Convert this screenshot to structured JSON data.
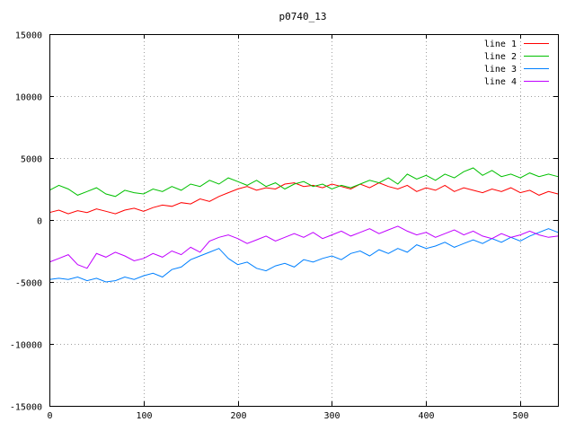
{
  "chart_data": {
    "type": "line",
    "title": "p0740_13",
    "xlabel": "",
    "ylabel": "",
    "xlim": [
      0,
      540
    ],
    "ylim": [
      -15000,
      15000
    ],
    "xticks": [
      0,
      100,
      200,
      300,
      400,
      500
    ],
    "yticks": [
      -15000,
      -10000,
      -5000,
      0,
      5000,
      10000,
      15000
    ],
    "grid": true,
    "legend_position": "top-right",
    "series": [
      {
        "name": "line 1",
        "color": "#ff0000",
        "x": [
          0,
          10,
          20,
          30,
          40,
          50,
          60,
          70,
          80,
          90,
          100,
          110,
          120,
          130,
          140,
          150,
          160,
          170,
          180,
          190,
          200,
          210,
          220,
          230,
          240,
          250,
          260,
          270,
          280,
          290,
          300,
          310,
          320,
          330,
          340,
          350,
          360,
          370,
          380,
          390,
          400,
          410,
          420,
          430,
          440,
          450,
          460,
          470,
          480,
          490,
          500,
          510,
          520,
          530,
          540
        ],
        "y": [
          600,
          800,
          500,
          750,
          600,
          900,
          700,
          500,
          800,
          950,
          700,
          1000,
          1200,
          1100,
          1400,
          1300,
          1700,
          1500,
          1900,
          2200,
          2500,
          2700,
          2400,
          2600,
          2500,
          2900,
          3000,
          2700,
          2800,
          2600,
          2900,
          2700,
          2500,
          2900,
          2600,
          3000,
          2700,
          2500,
          2800,
          2300,
          2600,
          2400,
          2800,
          2300,
          2600,
          2400,
          2200,
          2500,
          2300,
          2600,
          2200,
          2400,
          2000,
          2300,
          2100
        ]
      },
      {
        "name": "line 2",
        "color": "#00c000",
        "x": [
          0,
          10,
          20,
          30,
          40,
          50,
          60,
          70,
          80,
          90,
          100,
          110,
          120,
          130,
          140,
          150,
          160,
          170,
          180,
          190,
          200,
          210,
          220,
          230,
          240,
          250,
          260,
          270,
          280,
          290,
          300,
          310,
          320,
          330,
          340,
          350,
          360,
          370,
          380,
          390,
          400,
          410,
          420,
          430,
          440,
          450,
          460,
          470,
          480,
          490,
          500,
          510,
          520,
          530,
          540
        ],
        "y": [
          2400,
          2800,
          2500,
          2000,
          2300,
          2600,
          2100,
          1900,
          2400,
          2200,
          2100,
          2500,
          2300,
          2700,
          2400,
          2900,
          2700,
          3200,
          2900,
          3400,
          3100,
          2800,
          3200,
          2700,
          3000,
          2500,
          2900,
          3100,
          2700,
          2900,
          2500,
          2800,
          2600,
          2900,
          3200,
          3000,
          3400,
          2900,
          3700,
          3300,
          3600,
          3200,
          3700,
          3400,
          3900,
          4200,
          3600,
          4000,
          3500,
          3700,
          3400,
          3800,
          3500,
          3700,
          3500
        ]
      },
      {
        "name": "line 3",
        "color": "#0080ff",
        "x": [
          0,
          10,
          20,
          30,
          40,
          50,
          60,
          70,
          80,
          90,
          100,
          110,
          120,
          130,
          140,
          150,
          160,
          170,
          180,
          190,
          200,
          210,
          220,
          230,
          240,
          250,
          260,
          270,
          280,
          290,
          300,
          310,
          320,
          330,
          340,
          350,
          360,
          370,
          380,
          390,
          400,
          410,
          420,
          430,
          440,
          450,
          460,
          470,
          480,
          490,
          500,
          510,
          520,
          530,
          540
        ],
        "y": [
          -4800,
          -4700,
          -4800,
          -4600,
          -4900,
          -4700,
          -5000,
          -4900,
          -4600,
          -4800,
          -4500,
          -4300,
          -4600,
          -4000,
          -3800,
          -3200,
          -2900,
          -2600,
          -2300,
          -3100,
          -3600,
          -3400,
          -3900,
          -4100,
          -3700,
          -3500,
          -3800,
          -3200,
          -3400,
          -3100,
          -2900,
          -3200,
          -2700,
          -2500,
          -2900,
          -2400,
          -2700,
          -2300,
          -2600,
          -2000,
          -2300,
          -2100,
          -1800,
          -2200,
          -1900,
          -1600,
          -1900,
          -1500,
          -1800,
          -1400,
          -1700,
          -1300,
          -1000,
          -700,
          -1000
        ]
      },
      {
        "name": "line 4",
        "color": "#c000ff",
        "x": [
          0,
          10,
          20,
          30,
          40,
          50,
          60,
          70,
          80,
          90,
          100,
          110,
          120,
          130,
          140,
          150,
          160,
          170,
          180,
          190,
          200,
          210,
          220,
          230,
          240,
          250,
          260,
          270,
          280,
          290,
          300,
          310,
          320,
          330,
          340,
          350,
          360,
          370,
          380,
          390,
          400,
          410,
          420,
          430,
          440,
          450,
          460,
          470,
          480,
          490,
          500,
          510,
          520,
          530,
          540
        ],
        "y": [
          -3400,
          -3100,
          -2800,
          -3600,
          -3900,
          -2700,
          -3000,
          -2600,
          -2900,
          -3300,
          -3100,
          -2700,
          -3000,
          -2500,
          -2800,
          -2200,
          -2600,
          -1700,
          -1400,
          -1200,
          -1500,
          -1900,
          -1600,
          -1300,
          -1700,
          -1400,
          -1100,
          -1400,
          -1000,
          -1500,
          -1200,
          -900,
          -1300,
          -1000,
          -700,
          -1100,
          -800,
          -500,
          -900,
          -1200,
          -1000,
          -1400,
          -1100,
          -800,
          -1200,
          -900,
          -1300,
          -1500,
          -1100,
          -1400,
          -1200,
          -900,
          -1200,
          -1400,
          -1300
        ]
      }
    ]
  }
}
